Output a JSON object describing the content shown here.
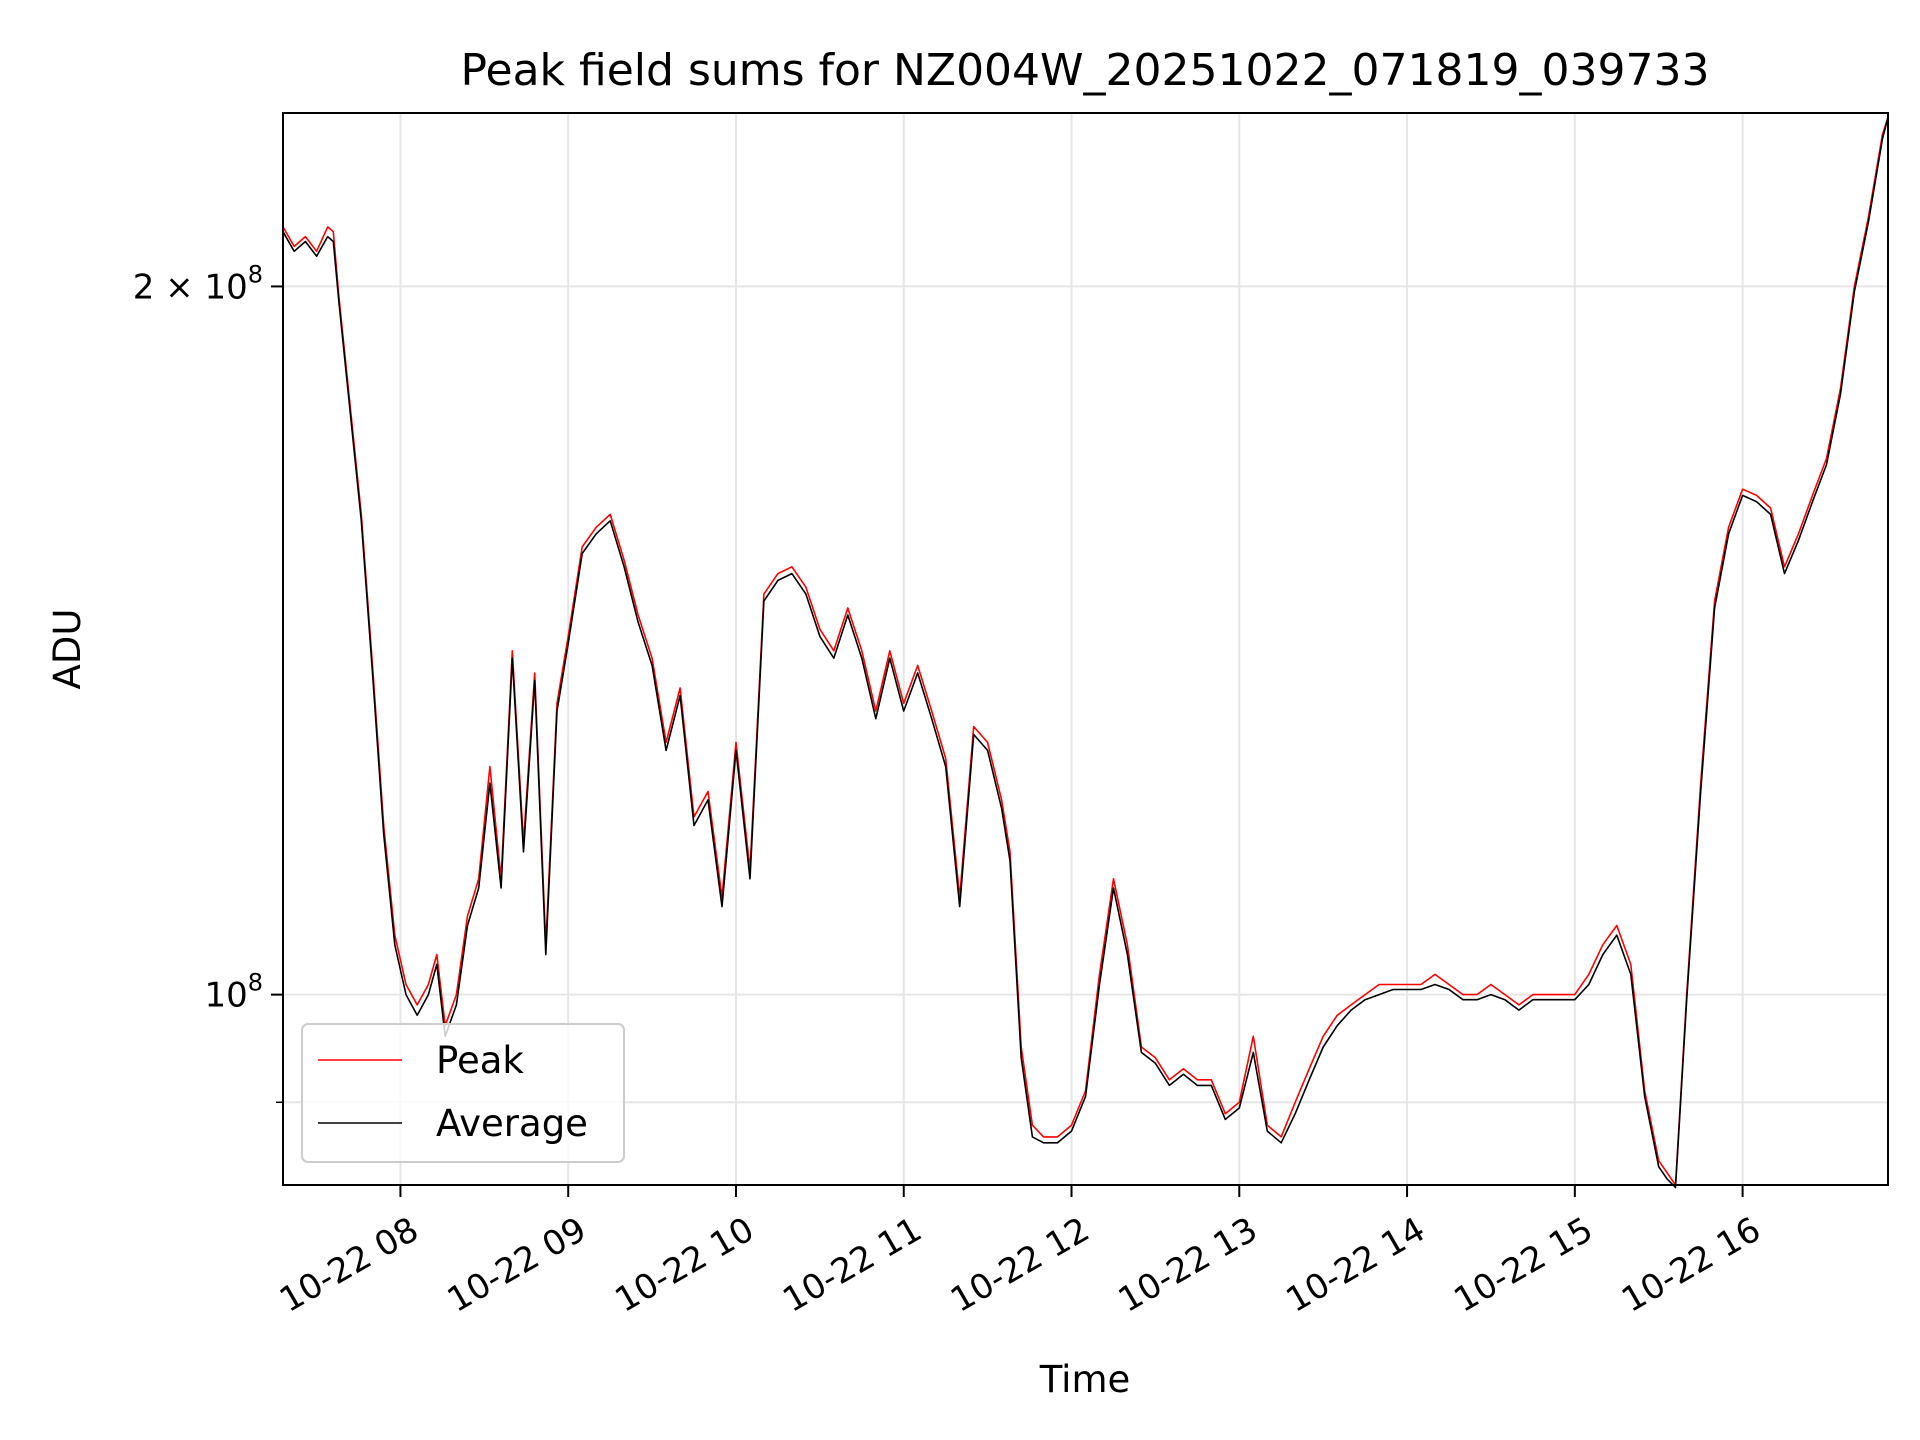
{
  "chart_data": {
    "type": "line",
    "title": "Peak field sums for NZ004W_20251022_071819_039733",
    "xlabel": "Time",
    "ylabel": "ADU",
    "y_scale": "log",
    "ylim": [
      83000000,
      237000000
    ],
    "xlim": [
      "2025-10-22T07:18",
      "2025-10-22T16:52"
    ],
    "grid": true,
    "legend_placement": "lower-left",
    "x_ticks": [
      {
        "value": "2025-10-22T08:00",
        "label": "10-22 08"
      },
      {
        "value": "2025-10-22T09:00",
        "label": "10-22 09"
      },
      {
        "value": "2025-10-22T10:00",
        "label": "10-22 10"
      },
      {
        "value": "2025-10-22T11:00",
        "label": "10-22 11"
      },
      {
        "value": "2025-10-22T12:00",
        "label": "10-22 12"
      },
      {
        "value": "2025-10-22T13:00",
        "label": "10-22 13"
      },
      {
        "value": "2025-10-22T14:00",
        "label": "10-22 14"
      },
      {
        "value": "2025-10-22T15:00",
        "label": "10-22 15"
      },
      {
        "value": "2025-10-22T16:00",
        "label": "10-22 16"
      }
    ],
    "y_major_ticks": [
      {
        "value": 100000000,
        "label_base": "10",
        "label_exp": "8"
      },
      {
        "value": 200000000,
        "label_base": "2 × 10",
        "label_exp": "8"
      }
    ],
    "y_minor_ticks": [
      90000000
    ],
    "series": [
      {
        "name": "Peak",
        "color": "#ff0000",
        "x": [
          "2025-10-22T07:18",
          "2025-10-22T07:22",
          "2025-10-22T07:26",
          "2025-10-22T07:30",
          "2025-10-22T07:34",
          "2025-10-22T07:36",
          "2025-10-22T07:38",
          "2025-10-22T07:42",
          "2025-10-22T07:46",
          "2025-10-22T07:50",
          "2025-10-22T07:54",
          "2025-10-22T07:58",
          "2025-10-22T08:02",
          "2025-10-22T08:06",
          "2025-10-22T08:10",
          "2025-10-22T08:13",
          "2025-10-22T08:16",
          "2025-10-22T08:20",
          "2025-10-22T08:24",
          "2025-10-22T08:28",
          "2025-10-22T08:32",
          "2025-10-22T08:36",
          "2025-10-22T08:40",
          "2025-10-22T08:44",
          "2025-10-22T08:48",
          "2025-10-22T08:52",
          "2025-10-22T08:56",
          "2025-10-22T09:00",
          "2025-10-22T09:05",
          "2025-10-22T09:10",
          "2025-10-22T09:15",
          "2025-10-22T09:20",
          "2025-10-22T09:25",
          "2025-10-22T09:30",
          "2025-10-22T09:35",
          "2025-10-22T09:40",
          "2025-10-22T09:45",
          "2025-10-22T09:50",
          "2025-10-22T09:55",
          "2025-10-22T10:00",
          "2025-10-22T10:05",
          "2025-10-22T10:10",
          "2025-10-22T10:15",
          "2025-10-22T10:20",
          "2025-10-22T10:25",
          "2025-10-22T10:30",
          "2025-10-22T10:35",
          "2025-10-22T10:40",
          "2025-10-22T10:45",
          "2025-10-22T10:50",
          "2025-10-22T10:55",
          "2025-10-22T11:00",
          "2025-10-22T11:05",
          "2025-10-22T11:10",
          "2025-10-22T11:15",
          "2025-10-22T11:20",
          "2025-10-22T11:25",
          "2025-10-22T11:30",
          "2025-10-22T11:35",
          "2025-10-22T11:38",
          "2025-10-22T11:42",
          "2025-10-22T11:46",
          "2025-10-22T11:50",
          "2025-10-22T11:55",
          "2025-10-22T12:00",
          "2025-10-22T12:05",
          "2025-10-22T12:10",
          "2025-10-22T12:15",
          "2025-10-22T12:20",
          "2025-10-22T12:25",
          "2025-10-22T12:30",
          "2025-10-22T12:35",
          "2025-10-22T12:40",
          "2025-10-22T12:45",
          "2025-10-22T12:50",
          "2025-10-22T12:55",
          "2025-10-22T13:00",
          "2025-10-22T13:05",
          "2025-10-22T13:10",
          "2025-10-22T13:15",
          "2025-10-22T13:20",
          "2025-10-22T13:25",
          "2025-10-22T13:30",
          "2025-10-22T13:35",
          "2025-10-22T13:40",
          "2025-10-22T13:45",
          "2025-10-22T13:50",
          "2025-10-22T13:55",
          "2025-10-22T14:00",
          "2025-10-22T14:05",
          "2025-10-22T14:10",
          "2025-10-22T14:15",
          "2025-10-22T14:20",
          "2025-10-22T14:25",
          "2025-10-22T14:30",
          "2025-10-22T14:35",
          "2025-10-22T14:40",
          "2025-10-22T14:45",
          "2025-10-22T14:50",
          "2025-10-22T14:55",
          "2025-10-22T15:00",
          "2025-10-22T15:05",
          "2025-10-22T15:10",
          "2025-10-22T15:15",
          "2025-10-22T15:20",
          "2025-10-22T15:25",
          "2025-10-22T15:30",
          "2025-10-22T15:33",
          "2025-10-22T15:36",
          "2025-10-22T15:40",
          "2025-10-22T15:45",
          "2025-10-22T15:50",
          "2025-10-22T15:55",
          "2025-10-22T16:00",
          "2025-10-22T16:05",
          "2025-10-22T16:10",
          "2025-10-22T16:15",
          "2025-10-22T16:20",
          "2025-10-22T16:25",
          "2025-10-22T16:30",
          "2025-10-22T16:35",
          "2025-10-22T16:40",
          "2025-10-22T16:45",
          "2025-10-22T16:50",
          "2025-10-22T16:52"
        ],
        "values": [
          212000000,
          208000000,
          210000000,
          207000000,
          212000000,
          211000000,
          198000000,
          178000000,
          160000000,
          138000000,
          118000000,
          106000000,
          101000000,
          99000000,
          101000000,
          104000000,
          97000000,
          100000000,
          108000000,
          112000000,
          125000000,
          112000000,
          140000000,
          116000000,
          137000000,
          105000000,
          133000000,
          142000000,
          155000000,
          158000000,
          160000000,
          153000000,
          145000000,
          139000000,
          128000000,
          135000000,
          119000000,
          122000000,
          110000000,
          128000000,
          113000000,
          148000000,
          151000000,
          152000000,
          149000000,
          143000000,
          140000000,
          146000000,
          140000000,
          132000000,
          140000000,
          133000000,
          138000000,
          132000000,
          126000000,
          110000000,
          130000000,
          128000000,
          121000000,
          115000000,
          95000000,
          88000000,
          87000000,
          87000000,
          88000000,
          91000000,
          102000000,
          112000000,
          105000000,
          95000000,
          94000000,
          92000000,
          93000000,
          92000000,
          92000000,
          89000000,
          90000000,
          96000000,
          88000000,
          87000000,
          90000000,
          93000000,
          96000000,
          98000000,
          99000000,
          100000000,
          101000000,
          101000000,
          101000000,
          101000000,
          102000000,
          101000000,
          100000000,
          100000000,
          101000000,
          100000000,
          99000000,
          100000000,
          100000000,
          100000000,
          100000000,
          102000000,
          105000000,
          107000000,
          103000000,
          91000000,
          85000000,
          84000000,
          83000000,
          100000000,
          123000000,
          147000000,
          158000000,
          164000000,
          163000000,
          161000000,
          152000000,
          157000000,
          163000000,
          169000000,
          181000000,
          200000000,
          214000000,
          232000000,
          236000000
        ]
      },
      {
        "name": "Average",
        "color": "#000000",
        "x": [
          "2025-10-22T07:18",
          "2025-10-22T07:22",
          "2025-10-22T07:26",
          "2025-10-22T07:30",
          "2025-10-22T07:34",
          "2025-10-22T07:36",
          "2025-10-22T07:38",
          "2025-10-22T07:42",
          "2025-10-22T07:46",
          "2025-10-22T07:50",
          "2025-10-22T07:54",
          "2025-10-22T07:58",
          "2025-10-22T08:02",
          "2025-10-22T08:06",
          "2025-10-22T08:10",
          "2025-10-22T08:13",
          "2025-10-22T08:16",
          "2025-10-22T08:20",
          "2025-10-22T08:24",
          "2025-10-22T08:28",
          "2025-10-22T08:32",
          "2025-10-22T08:36",
          "2025-10-22T08:40",
          "2025-10-22T08:44",
          "2025-10-22T08:48",
          "2025-10-22T08:52",
          "2025-10-22T08:56",
          "2025-10-22T09:00",
          "2025-10-22T09:05",
          "2025-10-22T09:10",
          "2025-10-22T09:15",
          "2025-10-22T09:20",
          "2025-10-22T09:25",
          "2025-10-22T09:30",
          "2025-10-22T09:35",
          "2025-10-22T09:40",
          "2025-10-22T09:45",
          "2025-10-22T09:50",
          "2025-10-22T09:55",
          "2025-10-22T10:00",
          "2025-10-22T10:05",
          "2025-10-22T10:10",
          "2025-10-22T10:15",
          "2025-10-22T10:20",
          "2025-10-22T10:25",
          "2025-10-22T10:30",
          "2025-10-22T10:35",
          "2025-10-22T10:40",
          "2025-10-22T10:45",
          "2025-10-22T10:50",
          "2025-10-22T10:55",
          "2025-10-22T11:00",
          "2025-10-22T11:05",
          "2025-10-22T11:10",
          "2025-10-22T11:15",
          "2025-10-22T11:20",
          "2025-10-22T11:25",
          "2025-10-22T11:30",
          "2025-10-22T11:35",
          "2025-10-22T11:38",
          "2025-10-22T11:42",
          "2025-10-22T11:46",
          "2025-10-22T11:50",
          "2025-10-22T11:55",
          "2025-10-22T12:00",
          "2025-10-22T12:05",
          "2025-10-22T12:10",
          "2025-10-22T12:15",
          "2025-10-22T12:20",
          "2025-10-22T12:25",
          "2025-10-22T12:30",
          "2025-10-22T12:35",
          "2025-10-22T12:40",
          "2025-10-22T12:45",
          "2025-10-22T12:50",
          "2025-10-22T12:55",
          "2025-10-22T13:00",
          "2025-10-22T13:05",
          "2025-10-22T13:10",
          "2025-10-22T13:15",
          "2025-10-22T13:20",
          "2025-10-22T13:25",
          "2025-10-22T13:30",
          "2025-10-22T13:35",
          "2025-10-22T13:40",
          "2025-10-22T13:45",
          "2025-10-22T13:50",
          "2025-10-22T13:55",
          "2025-10-22T14:00",
          "2025-10-22T14:05",
          "2025-10-22T14:10",
          "2025-10-22T14:15",
          "2025-10-22T14:20",
          "2025-10-22T14:25",
          "2025-10-22T14:30",
          "2025-10-22T14:35",
          "2025-10-22T14:40",
          "2025-10-22T14:45",
          "2025-10-22T14:50",
          "2025-10-22T14:55",
          "2025-10-22T15:00",
          "2025-10-22T15:05",
          "2025-10-22T15:10",
          "2025-10-22T15:15",
          "2025-10-22T15:20",
          "2025-10-22T15:25",
          "2025-10-22T15:30",
          "2025-10-22T15:33",
          "2025-10-22T15:36",
          "2025-10-22T15:40",
          "2025-10-22T15:45",
          "2025-10-22T15:50",
          "2025-10-22T15:55",
          "2025-10-22T16:00",
          "2025-10-22T16:05",
          "2025-10-22T16:10",
          "2025-10-22T16:15",
          "2025-10-22T16:20",
          "2025-10-22T16:25",
          "2025-10-22T16:30",
          "2025-10-22T16:35",
          "2025-10-22T16:40",
          "2025-10-22T16:45",
          "2025-10-22T16:50",
          "2025-10-22T16:52"
        ],
        "values": [
          211000000,
          207000000,
          209000000,
          206000000,
          210000000,
          209000000,
          197000000,
          177000000,
          159000000,
          137000000,
          117000000,
          105000000,
          100000000,
          98000000,
          100000000,
          103000000,
          96000000,
          99000000,
          107000000,
          111000000,
          123000000,
          111000000,
          139000000,
          115000000,
          136000000,
          104000000,
          132000000,
          141000000,
          154000000,
          157000000,
          159000000,
          152000000,
          144000000,
          138000000,
          127000000,
          134000000,
          118000000,
          121000000,
          109000000,
          127000000,
          112000000,
          147000000,
          150000000,
          151000000,
          148000000,
          142000000,
          139000000,
          145000000,
          139000000,
          131000000,
          139000000,
          132000000,
          137000000,
          131000000,
          125000000,
          109000000,
          129000000,
          127000000,
          120000000,
          114000000,
          94000000,
          87000000,
          86500000,
          86500000,
          87500000,
          90500000,
          101000000,
          111000000,
          104000000,
          94500000,
          93500000,
          91500000,
          92500000,
          91500000,
          91500000,
          88500000,
          89500000,
          94500000,
          87500000,
          86500000,
          89000000,
          92000000,
          95000000,
          97000000,
          98500000,
          99500000,
          100000000,
          100500000,
          100500000,
          100500000,
          101000000,
          100500000,
          99500000,
          99500000,
          100000000,
          99500000,
          98500000,
          99500000,
          99500000,
          99500000,
          99500000,
          101000000,
          104000000,
          106000000,
          102000000,
          90500000,
          84500000,
          83500000,
          82800000,
          99500000,
          122000000,
          146000000,
          157000000,
          163000000,
          162000000,
          160000000,
          151000000,
          156000000,
          162000000,
          168000000,
          180000000,
          199000000,
          213000000,
          231000000,
          236000000
        ]
      }
    ]
  }
}
